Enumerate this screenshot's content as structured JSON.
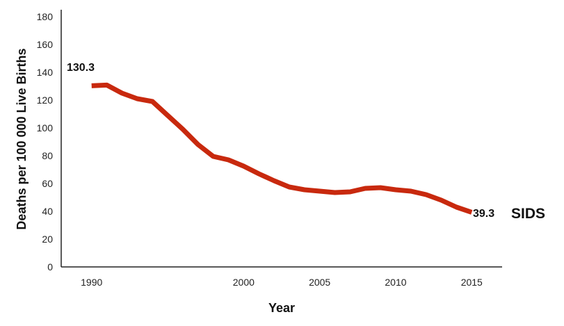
{
  "chart_data": {
    "type": "line",
    "title": "",
    "xlabel": "Year",
    "ylabel": "Deaths per 100 000 Live Births",
    "xlim": [
      1988,
      2017
    ],
    "ylim": [
      0,
      180
    ],
    "x_ticks": [
      1990,
      2000,
      2005,
      2010,
      2015
    ],
    "y_ticks": [
      0,
      20,
      40,
      60,
      80,
      100,
      120,
      140,
      160,
      180
    ],
    "grid": false,
    "series": [
      {
        "name": "SIDS",
        "color": "#c8290e",
        "x": [
          1990,
          1991,
          1992,
          1993,
          1994,
          1995,
          1996,
          1997,
          1998,
          1999,
          2000,
          2001,
          2002,
          2003,
          2004,
          2005,
          2006,
          2007,
          2008,
          2009,
          2010,
          2011,
          2012,
          2013,
          2014,
          2015
        ],
        "y": [
          130.3,
          130.8,
          125.0,
          121.0,
          119.0,
          109.0,
          99.0,
          88.0,
          79.5,
          77.0,
          72.5,
          67.0,
          62.0,
          57.5,
          55.5,
          54.5,
          53.5,
          54.0,
          56.5,
          57.0,
          55.5,
          54.5,
          52.0,
          48.0,
          43.0,
          39.3
        ]
      }
    ],
    "annotations": [
      {
        "text": "130.3",
        "x": 1990,
        "y": 130.3
      },
      {
        "text": "39.3",
        "x": 2015,
        "y": 39.3
      }
    ]
  }
}
